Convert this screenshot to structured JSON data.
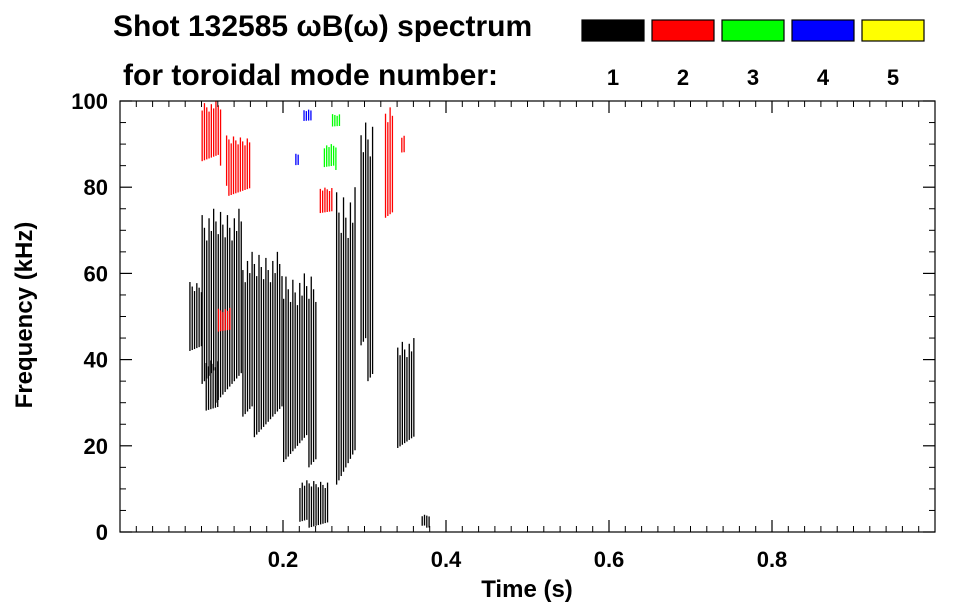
{
  "chart_data": {
    "type": "heatmap",
    "title_line1": "Shot 132585 ωB(ω) spectrum",
    "title_line2": "for toroidal mode number:",
    "xlabel": "Time (s)",
    "ylabel": "Frequency (kHz)",
    "xlim": [
      0.0,
      1.0
    ],
    "ylim": [
      0,
      100
    ],
    "x_ticks": [
      "0.2",
      "0.4",
      "0.6",
      "0.8"
    ],
    "x_tick_values": [
      0.2,
      0.4,
      0.6,
      0.8
    ],
    "y_ticks": [
      "0",
      "20",
      "40",
      "60",
      "80",
      "100"
    ],
    "y_tick_values": [
      0,
      20,
      40,
      60,
      80,
      100
    ],
    "legend": [
      {
        "label": "1",
        "color": "#000000"
      },
      {
        "label": "2",
        "color": "#ff0000"
      },
      {
        "label": "3",
        "color": "#00ff00"
      },
      {
        "label": "4",
        "color": "#0000ff"
      },
      {
        "label": "5",
        "color": "#ffff00"
      }
    ],
    "legend_placement": "top-right",
    "grid": false,
    "regions": [
      {
        "mode": 1,
        "t": [
          0.085,
          0.1
        ],
        "f": [
          42,
          58
        ]
      },
      {
        "mode": 1,
        "t": [
          0.1,
          0.15
        ],
        "f": [
          30,
          75
        ]
      },
      {
        "mode": 1,
        "t": [
          0.105,
          0.12
        ],
        "f": [
          28,
          40
        ]
      },
      {
        "mode": 1,
        "t": [
          0.15,
          0.2
        ],
        "f": [
          22,
          65
        ]
      },
      {
        "mode": 1,
        "t": [
          0.2,
          0.24
        ],
        "f": [
          15,
          60
        ]
      },
      {
        "mode": 1,
        "t": [
          0.22,
          0.255
        ],
        "f": [
          1,
          12
        ]
      },
      {
        "mode": 1,
        "t": [
          0.265,
          0.29
        ],
        "f": [
          8,
          80
        ]
      },
      {
        "mode": 1,
        "t": [
          0.295,
          0.31
        ],
        "f": [
          35,
          95
        ]
      },
      {
        "mode": 1,
        "t": [
          0.34,
          0.36
        ],
        "f": [
          18,
          45
        ]
      },
      {
        "mode": 1,
        "t": [
          0.37,
          0.38
        ],
        "f": [
          1,
          4
        ]
      },
      {
        "mode": 2,
        "t": [
          0.1,
          0.125
        ],
        "f": [
          85,
          100
        ]
      },
      {
        "mode": 2,
        "t": [
          0.13,
          0.16
        ],
        "f": [
          78,
          92
        ]
      },
      {
        "mode": 2,
        "t": [
          0.12,
          0.135
        ],
        "f": [
          46,
          52
        ]
      },
      {
        "mode": 2,
        "t": [
          0.245,
          0.26
        ],
        "f": [
          74,
          80
        ]
      },
      {
        "mode": 2,
        "t": [
          0.325,
          0.335
        ],
        "f": [
          70,
          100
        ]
      },
      {
        "mode": 2,
        "t": [
          0.345,
          0.35
        ],
        "f": [
          88,
          92
        ]
      },
      {
        "mode": 3,
        "t": [
          0.25,
          0.265
        ],
        "f": [
          84,
          90
        ]
      },
      {
        "mode": 3,
        "t": [
          0.26,
          0.27
        ],
        "f": [
          94,
          97
        ]
      },
      {
        "mode": 4,
        "t": [
          0.225,
          0.235
        ],
        "f": [
          95,
          98
        ]
      },
      {
        "mode": 4,
        "t": [
          0.215,
          0.22
        ],
        "f": [
          85,
          88
        ]
      }
    ]
  }
}
